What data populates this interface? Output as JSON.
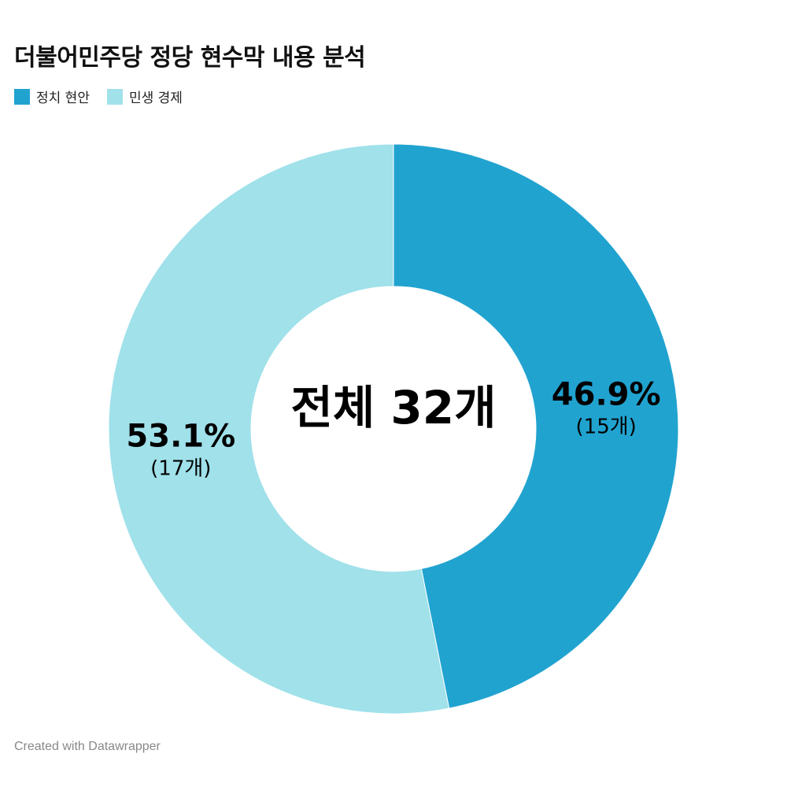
{
  "title": "더불어민주당 정당 현수막 내용 분석",
  "footer": "Created with Datawrapper",
  "chart_data": {
    "type": "pie",
    "variant": "donut",
    "title": "더불어민주당 정당 현수막 내용 분석",
    "center_label": "전체 32개",
    "legend_position": "top-left",
    "total": 32,
    "slices": [
      {
        "name": "정치 현안",
        "value": 15,
        "percent_label": "46.9%",
        "count_label": "(15개)",
        "color": "#21a3d0"
      },
      {
        "name": "민생 경제",
        "value": 17,
        "percent_label": "53.1%",
        "count_label": "(17개)",
        "color": "#a0e1ea"
      }
    ]
  }
}
